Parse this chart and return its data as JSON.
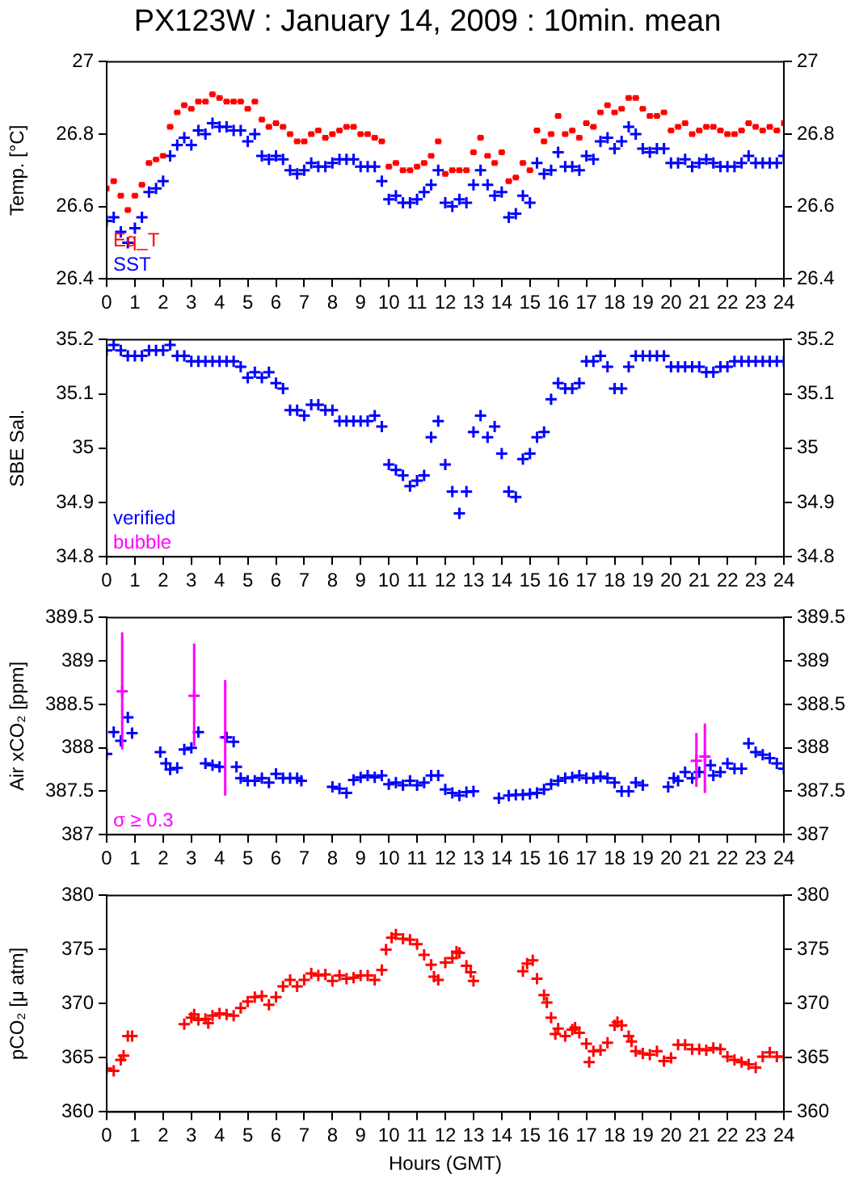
{
  "chart_data": [
    {
      "type": "scatter",
      "title": "PX123W : January 14, 2009 : 10min. mean",
      "ylabel": "Temp. [°C]",
      "legend": "bottom left",
      "x": [
        0,
        0.25,
        0.5,
        0.75,
        1,
        1.25,
        1.5,
        1.75,
        2,
        2.25,
        2.5,
        2.75,
        3,
        3.25,
        3.5,
        3.75,
        4,
        4.25,
        4.5,
        4.75,
        5,
        5.25,
        5.5,
        5.75,
        6,
        6.25,
        6.5,
        6.75,
        7,
        7.25,
        7.5,
        7.75,
        8,
        8.25,
        8.5,
        8.75,
        9,
        9.25,
        9.5,
        9.75,
        10,
        10.25,
        10.5,
        10.75,
        11,
        11.25,
        11.5,
        11.75,
        12,
        12.25,
        12.5,
        12.75,
        13,
        13.25,
        13.5,
        13.75,
        14,
        14.25,
        14.5,
        14.75,
        15,
        15.25,
        15.5,
        15.75,
        16,
        16.25,
        16.5,
        16.75,
        17,
        17.25,
        17.5,
        17.75,
        18,
        18.25,
        18.5,
        18.75,
        19,
        19.25,
        19.5,
        19.75,
        20,
        20.25,
        20.5,
        20.75,
        21,
        21.25,
        21.5,
        21.75,
        22,
        22.25,
        22.5,
        22.75,
        23,
        23.25,
        23.5,
        23.75,
        24
      ],
      "series": [
        {
          "name": "Eq_T",
          "color": "#ff0000",
          "marker": "square",
          "xerrors": [
            null,
            0.12,
            0.12,
            0.12,
            0.12,
            0.12,
            0.12,
            0.12,
            0.12,
            0.12,
            0.12,
            0.12,
            0.12,
            0.12,
            0.12,
            0.12,
            0.12,
            0.12,
            0.12,
            0.12,
            0.12,
            0.12,
            0.12,
            0.12,
            0.12,
            0.12,
            0.12,
            0.12,
            0.12,
            0.12,
            0.12,
            0.12,
            0.12,
            0.12,
            0.12,
            0.12,
            0.12,
            0.12,
            0.12,
            0.12,
            0.12,
            0.12,
            0.12,
            0.12,
            0.12,
            0.12,
            0.12,
            0.12,
            0.12,
            0.12,
            0.12,
            0.12,
            0.12,
            0.12,
            0.12,
            0.12,
            0.12,
            0.12,
            0.12,
            0.12,
            0.12,
            0.12,
            0.12,
            0.12,
            0.12,
            0.12,
            0.12,
            0.12,
            0.12,
            0.12,
            0.12,
            0.12,
            0.12,
            0.12,
            0.12,
            0.12,
            0.12,
            0.12,
            0.12,
            0.12,
            0.12,
            0.12,
            0.12,
            0.12,
            0.12,
            0.12,
            0.12,
            0.12,
            0.12,
            0.12,
            0.12,
            0.12,
            0.12,
            0.12,
            0.12,
            0.12,
            null
          ],
          "values": [
            26.65,
            26.67,
            26.63,
            26.59,
            26.63,
            26.66,
            26.72,
            26.73,
            26.74,
            26.82,
            26.86,
            26.88,
            26.87,
            26.89,
            26.89,
            26.91,
            26.9,
            26.89,
            26.89,
            26.89,
            26.87,
            26.89,
            26.84,
            26.82,
            26.83,
            26.82,
            26.8,
            26.78,
            26.78,
            26.8,
            26.81,
            26.79,
            26.8,
            26.81,
            26.82,
            26.82,
            26.8,
            26.8,
            26.79,
            26.78,
            26.71,
            26.72,
            26.7,
            26.7,
            26.71,
            26.72,
            26.74,
            26.78,
            26.69,
            26.7,
            26.7,
            26.7,
            26.75,
            26.79,
            26.74,
            26.72,
            26.75,
            26.67,
            26.68,
            26.72,
            26.7,
            26.81,
            26.78,
            26.8,
            26.85,
            26.8,
            26.81,
            26.79,
            26.83,
            26.82,
            26.86,
            26.88,
            26.86,
            26.87,
            26.9,
            26.9,
            26.87,
            26.85,
            26.85,
            26.86,
            26.81,
            26.82,
            26.83,
            26.8,
            26.81,
            26.82,
            26.82,
            26.81,
            26.8,
            26.8,
            26.81,
            26.83,
            26.82,
            26.81,
            26.82,
            26.81,
            26.83
          ]
        },
        {
          "name": "SST",
          "color": "#0000ff",
          "marker": "cross",
          "values": [
            26.56,
            26.57,
            26.53,
            26.5,
            26.54,
            26.57,
            26.64,
            26.65,
            26.67,
            26.74,
            26.77,
            26.79,
            26.77,
            26.81,
            26.8,
            26.83,
            26.82,
            26.82,
            26.81,
            26.81,
            26.78,
            26.8,
            26.74,
            26.73,
            26.74,
            26.73,
            26.7,
            26.69,
            26.7,
            26.72,
            26.71,
            26.71,
            26.72,
            26.73,
            26.73,
            26.73,
            26.71,
            26.71,
            26.71,
            26.67,
            26.62,
            26.63,
            26.61,
            26.61,
            26.62,
            26.64,
            26.66,
            26.7,
            26.61,
            26.6,
            26.62,
            26.61,
            26.66,
            26.7,
            26.66,
            26.63,
            26.64,
            26.57,
            26.58,
            26.63,
            26.61,
            26.72,
            26.69,
            26.7,
            26.75,
            26.71,
            26.71,
            26.7,
            26.74,
            26.73,
            26.78,
            26.79,
            26.76,
            26.78,
            26.82,
            26.8,
            26.76,
            26.75,
            26.76,
            26.76,
            26.72,
            26.72,
            26.73,
            26.71,
            26.72,
            26.73,
            26.72,
            26.71,
            26.71,
            26.71,
            26.72,
            26.74,
            26.72,
            26.72,
            26.72,
            26.72,
            26.74
          ]
        }
      ],
      "xlim": [
        0,
        24
      ],
      "xticks": [
        0,
        1,
        2,
        3,
        4,
        5,
        6,
        7,
        8,
        9,
        10,
        11,
        12,
        13,
        14,
        15,
        16,
        17,
        18,
        19,
        20,
        21,
        22,
        23,
        24
      ],
      "ylim": [
        26.4,
        27
      ],
      "yticks": [
        26.4,
        26.6,
        26.8,
        27
      ],
      "y2lim": [
        26.4,
        27
      ],
      "y2ticks": [
        26.4,
        26.6,
        26.8,
        27
      ]
    },
    {
      "type": "scatter",
      "ylabel": "SBE Sal.",
      "legend": "bottom left",
      "marker": "cross",
      "x": [
        0,
        0.25,
        0.5,
        0.75,
        1,
        1.25,
        1.5,
        1.75,
        2,
        2.25,
        2.5,
        2.75,
        3,
        3.25,
        3.5,
        3.75,
        4,
        4.25,
        4.5,
        4.75,
        5,
        5.25,
        5.5,
        5.75,
        6,
        6.25,
        6.5,
        6.75,
        7,
        7.25,
        7.5,
        7.75,
        8,
        8.25,
        8.5,
        8.75,
        9,
        9.25,
        9.5,
        9.75,
        10,
        10.25,
        10.5,
        10.75,
        11,
        11.25,
        11.5,
        11.75,
        12,
        12.25,
        12.5,
        12.75,
        13,
        13.25,
        13.5,
        13.75,
        14,
        14.25,
        14.5,
        14.75,
        15,
        15.25,
        15.5,
        15.75,
        16,
        16.25,
        16.5,
        16.75,
        17,
        17.25,
        17.5,
        17.75,
        18,
        18.25,
        18.5,
        18.75,
        19,
        19.25,
        19.5,
        19.75,
        20,
        20.25,
        20.5,
        20.75,
        21,
        21.25,
        21.5,
        21.75,
        22,
        22.25,
        22.5,
        22.75,
        23,
        23.25,
        23.5,
        23.75,
        24
      ],
      "series": [
        {
          "name": "verified",
          "color": "#0000ff",
          "values": [
            35.18,
            35.19,
            35.18,
            35.17,
            35.17,
            35.17,
            35.18,
            35.18,
            35.18,
            35.19,
            35.17,
            35.17,
            35.16,
            35.16,
            35.16,
            35.16,
            35.16,
            35.16,
            35.16,
            35.15,
            35.13,
            35.14,
            35.13,
            35.14,
            35.12,
            35.11,
            35.07,
            35.07,
            35.06,
            35.08,
            35.08,
            35.07,
            35.07,
            35.05,
            35.05,
            35.05,
            35.05,
            35.05,
            35.06,
            35.04,
            34.97,
            34.96,
            34.95,
            34.93,
            34.94,
            34.95,
            35.02,
            35.05,
            34.97,
            34.92,
            34.88,
            34.92,
            35.03,
            35.06,
            35.02,
            35.04,
            34.99,
            34.92,
            34.91,
            34.98,
            34.99,
            35.02,
            35.03,
            35.09,
            35.12,
            35.11,
            35.11,
            35.12,
            35.16,
            35.16,
            35.17,
            35.15,
            35.11,
            35.11,
            35.15,
            35.17,
            35.17,
            35.17,
            35.17,
            35.17,
            35.15,
            35.15,
            35.15,
            35.15,
            35.15,
            35.14,
            35.14,
            35.15,
            35.15,
            35.16,
            35.16,
            35.16,
            35.16,
            35.16,
            35.16,
            35.16,
            35.16
          ]
        },
        {
          "name": "bubble",
          "color": "#ff00ff",
          "values": [
            null,
            null,
            null,
            null,
            null,
            null,
            null,
            null,
            null,
            null,
            null,
            null,
            null,
            null,
            null,
            null,
            null,
            null,
            null,
            null,
            null,
            null,
            null,
            null,
            null,
            null,
            null,
            null,
            null,
            null,
            null,
            null,
            null,
            null,
            null,
            null,
            null,
            null,
            null,
            null,
            null,
            null,
            null,
            null,
            null,
            null,
            null,
            null,
            null,
            null,
            null,
            null,
            null,
            null,
            null,
            null,
            null,
            null,
            null,
            null,
            null,
            null,
            null,
            null,
            null,
            null,
            null,
            null,
            null,
            null,
            null,
            null,
            null,
            null,
            null,
            null,
            null,
            null,
            null,
            null,
            null,
            null,
            null,
            null,
            null,
            null,
            null,
            null,
            null,
            null,
            null,
            null,
            null,
            null,
            null,
            null,
            null
          ]
        }
      ],
      "xlim": [
        0,
        24
      ],
      "xticks": [
        0,
        1,
        2,
        3,
        4,
        5,
        6,
        7,
        8,
        9,
        10,
        11,
        12,
        13,
        14,
        15,
        16,
        17,
        18,
        19,
        20,
        21,
        22,
        23,
        24
      ],
      "ylim": [
        34.8,
        35.2
      ],
      "yticks": [
        34.8,
        34.9,
        35,
        35.1,
        35.2
      ],
      "y2lim": [
        34.8,
        35.2
      ],
      "y2ticks": [
        34.8,
        34.9,
        35,
        35.1,
        35.2
      ]
    },
    {
      "type": "scatter",
      "ylabel": "Air xCO₂ [ppm]",
      "legend": "bottom left",
      "marker": "cross",
      "series": [
        {
          "color": "#0000ff",
          "x": [
            0,
            0.25,
            0.5,
            0.75,
            0.9,
            1.9,
            2.1,
            2.25,
            2.5,
            2.75,
            3,
            3.25,
            3.5,
            3.75,
            4,
            4.25,
            4.5,
            4.6,
            4.75,
            5,
            5.25,
            5.5,
            5.75,
            6,
            6.25,
            6.5,
            6.75,
            6.9,
            8,
            8.25,
            8.5,
            8.75,
            9,
            9.25,
            9.5,
            9.75,
            10,
            10.25,
            10.5,
            10.75,
            11,
            11.25,
            11.5,
            11.75,
            12,
            12.25,
            12.5,
            12.75,
            13,
            13.9,
            14.25,
            14.5,
            14.75,
            15,
            15.25,
            15.5,
            15.75,
            16,
            16.25,
            16.5,
            16.75,
            17,
            17.25,
            17.5,
            17.75,
            18,
            18.25,
            18.5,
            18.75,
            19,
            19.9,
            20.1,
            20.25,
            20.5,
            20.75,
            21,
            21.4,
            21.5,
            21.75,
            22,
            22.25,
            22.5,
            22.75,
            23,
            23.25,
            23.5,
            23.75,
            24
          ],
          "values": [
            387.93,
            388.18,
            388.08,
            388.35,
            388.17,
            387.95,
            387.82,
            387.75,
            387.77,
            387.98,
            388,
            388.18,
            387.82,
            387.8,
            387.78,
            388.12,
            388.07,
            387.78,
            387.65,
            387.62,
            387.62,
            387.65,
            387.6,
            387.7,
            387.65,
            387.65,
            387.65,
            387.62,
            387.55,
            387.53,
            387.48,
            387.63,
            387.66,
            387.68,
            387.66,
            387.68,
            387.58,
            387.6,
            387.57,
            387.62,
            387.57,
            387.6,
            387.68,
            387.68,
            387.52,
            387.48,
            387.45,
            387.49,
            387.5,
            387.42,
            387.45,
            387.46,
            387.46,
            387.47,
            387.48,
            387.52,
            387.58,
            387.62,
            387.65,
            387.66,
            387.68,
            387.65,
            387.65,
            387.67,
            387.65,
            387.6,
            387.5,
            387.5,
            387.6,
            387.57,
            387.55,
            387.65,
            387.62,
            387.72,
            387.65,
            387.72,
            387.8,
            387.68,
            387.72,
            387.82,
            387.76,
            387.76,
            388.05,
            387.95,
            387.92,
            387.88,
            387.82,
            387.76
          ]
        },
        {
          "name": "σ ≥ 0.3",
          "color": "#ff00ff",
          "x": [
            0.55,
            3.1,
            4.2,
            20.9,
            21.2
          ],
          "values": [
            388.65,
            388.6,
            388.12,
            387.85,
            387.9
          ],
          "errors": [
            [
              387.98,
              389.33
            ],
            [
              388.02,
              389.2
            ],
            [
              387.45,
              388.78
            ],
            [
              387.55,
              388.17
            ],
            [
              387.48,
              388.28
            ]
          ]
        }
      ],
      "xlim": [
        0,
        24
      ],
      "xticks": [
        0,
        1,
        2,
        3,
        4,
        5,
        6,
        7,
        8,
        9,
        10,
        11,
        12,
        13,
        14,
        15,
        16,
        17,
        18,
        19,
        20,
        21,
        22,
        23,
        24
      ],
      "ylim": [
        387,
        389.5
      ],
      "yticks": [
        387,
        387.5,
        388,
        388.5,
        389,
        389.5
      ],
      "y2lim": [
        387,
        389.5
      ],
      "y2ticks": [
        387,
        387.5,
        388,
        388.5,
        389,
        389.5
      ]
    },
    {
      "type": "scatter",
      "ylabel": "pCO₂ [μ atm]",
      "xlabel": "Hours (GMT)",
      "marker": "cross",
      "series": [
        {
          "color": "#ff0000",
          "x": [
            0,
            0.25,
            0.5,
            0.6,
            0.75,
            0.9,
            2.75,
            3,
            3.1,
            3.25,
            3.5,
            3.6,
            3.75,
            4,
            4.25,
            4.5,
            4.75,
            5,
            5.25,
            5.5,
            5.75,
            6,
            6.25,
            6.5,
            6.75,
            7,
            7.25,
            7.5,
            7.75,
            8,
            8.25,
            8.5,
            8.75,
            9,
            9.25,
            9.5,
            9.75,
            9.9,
            10.1,
            10.25,
            10.5,
            10.75,
            11,
            11.25,
            11.5,
            11.6,
            11.75,
            12,
            12.25,
            12.4,
            12.5,
            12.75,
            12.9,
            13,
            14.75,
            14.9,
            15.1,
            15.25,
            15.5,
            15.6,
            15.75,
            15.9,
            16,
            16.25,
            16.5,
            16.6,
            16.75,
            17,
            17.1,
            17.25,
            17.5,
            17.75,
            18,
            18.1,
            18.25,
            18.5,
            18.6,
            18.75,
            19,
            19.25,
            19.5,
            19.75,
            20,
            20.25,
            20.5,
            20.75,
            21,
            21.25,
            21.5,
            21.75,
            22,
            22.25,
            22.5,
            22.75,
            23,
            23.25,
            23.5,
            23.75,
            24
          ],
          "values": [
            364,
            363.8,
            364.8,
            365.2,
            367,
            367,
            368.1,
            368.7,
            369,
            368.5,
            368.6,
            368.2,
            368.9,
            369.1,
            369,
            368.9,
            369.6,
            370.2,
            370.6,
            370.7,
            369.9,
            370.6,
            371.6,
            372.2,
            371.6,
            372.2,
            372.8,
            372.6,
            372.7,
            372.1,
            372.6,
            372.3,
            372.4,
            372.6,
            372.6,
            372.2,
            373.1,
            375,
            376.1,
            376.4,
            376,
            375.9,
            375.5,
            374.5,
            373.6,
            372.5,
            372.2,
            373.8,
            374.2,
            374.8,
            374.7,
            373.5,
            372.9,
            372.1,
            373,
            373.7,
            374,
            372.3,
            370.8,
            370.1,
            368.7,
            367.2,
            367.7,
            367,
            367.6,
            367.8,
            367.3,
            366.3,
            364.6,
            365.6,
            365.7,
            366.4,
            368,
            368.3,
            368,
            367,
            366.5,
            365.6,
            365.4,
            365.3,
            365.6,
            364.7,
            365,
            366.2,
            366.2,
            365.8,
            365.8,
            365.7,
            365.9,
            365.8,
            365.1,
            364.8,
            364.6,
            364.4,
            364.1,
            365.1,
            365.5,
            365.1,
            365.1
          ]
        }
      ],
      "xlim": [
        0,
        24
      ],
      "xticks": [
        0,
        1,
        2,
        3,
        4,
        5,
        6,
        7,
        8,
        9,
        10,
        11,
        12,
        13,
        14,
        15,
        16,
        17,
        18,
        19,
        20,
        21,
        22,
        23,
        24
      ],
      "ylim": [
        360,
        380
      ],
      "yticks": [
        360,
        365,
        370,
        375,
        380
      ],
      "y2lim": [
        360,
        380
      ],
      "y2ticks": [
        360,
        365,
        370,
        375,
        380
      ]
    }
  ]
}
